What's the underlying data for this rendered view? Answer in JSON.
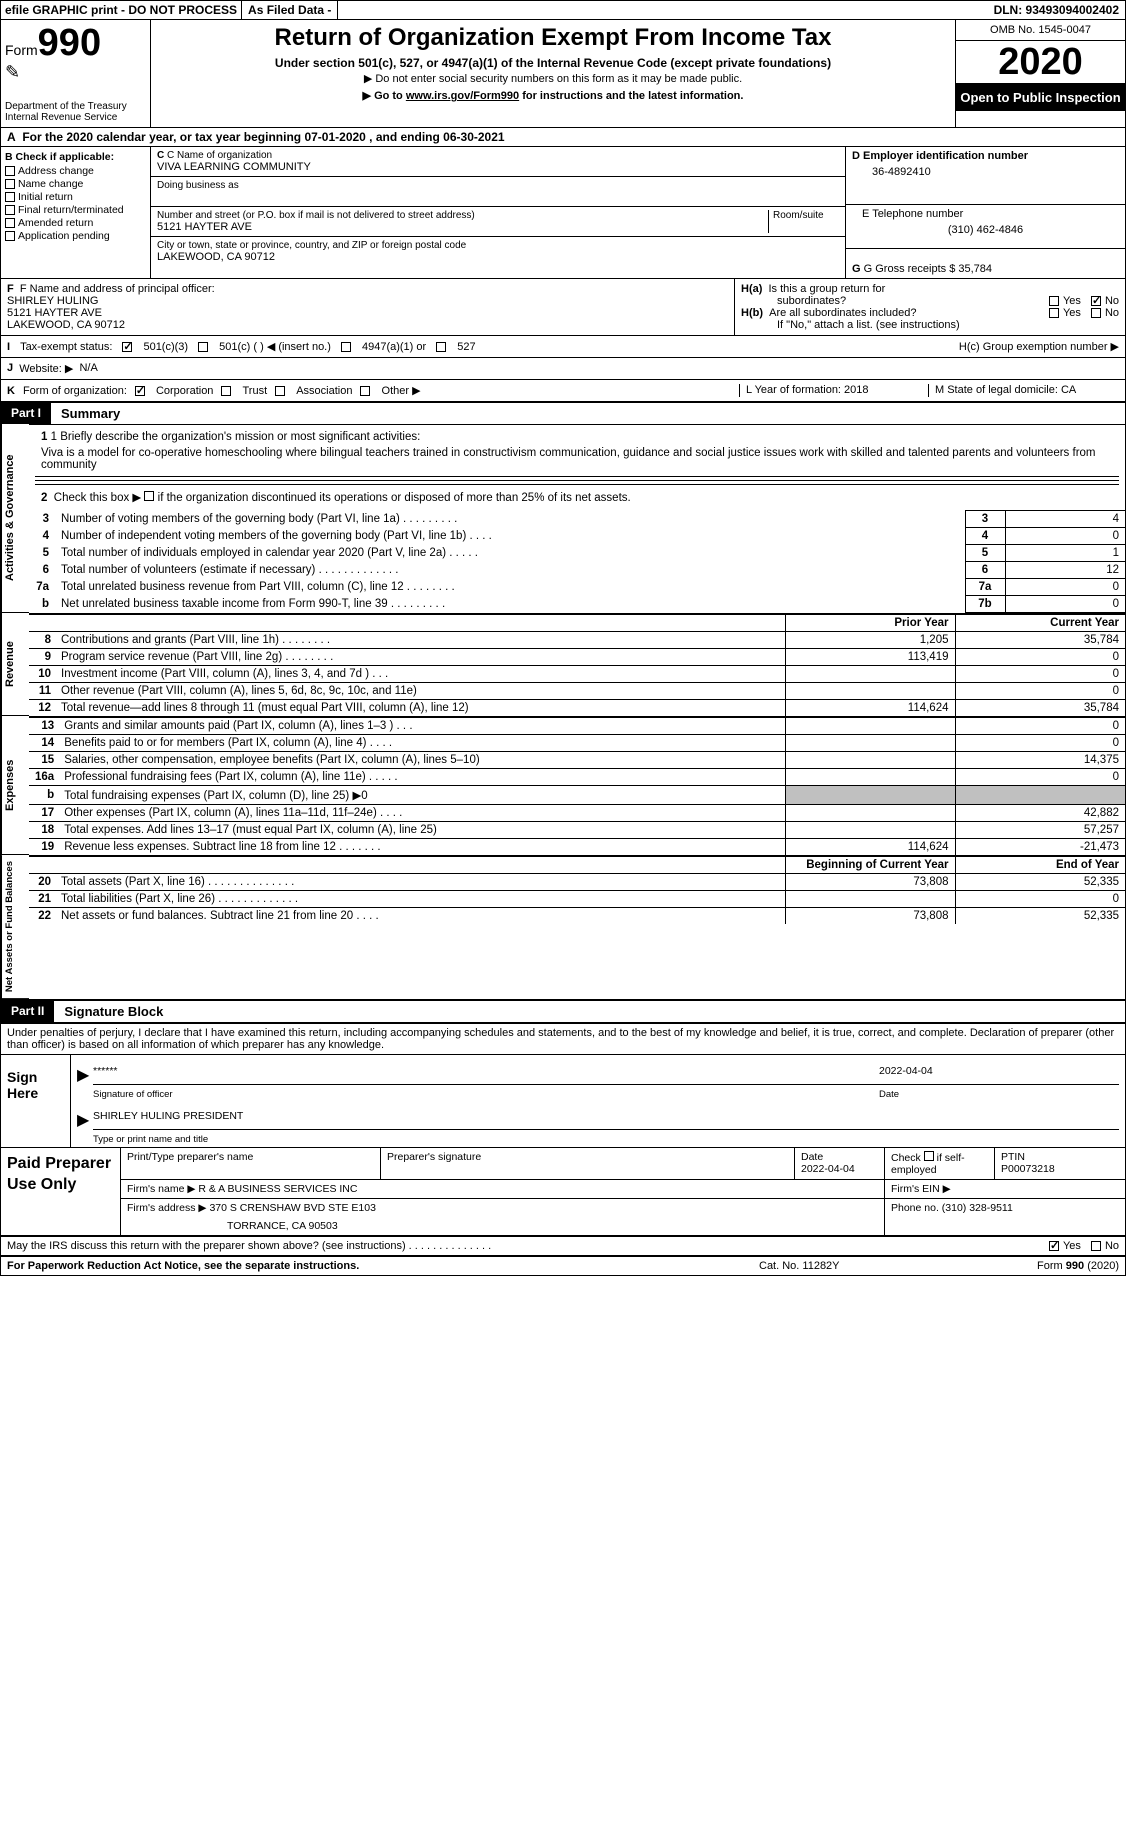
{
  "topbar": {
    "efile": "efile GRAPHIC print - DO NOT PROCESS",
    "asFiled": "As Filed Data -",
    "dln": "DLN: 93493094002402"
  },
  "header": {
    "formLabel": "Form",
    "formNumber": "990",
    "dept": "Department of the Treasury\nInternal Revenue Service",
    "title": "Return of Organization Exempt From Income Tax",
    "sub1": "Under section 501(c), 527, or 4947(a)(1) of the Internal Revenue Code (except private foundations)",
    "sub2": "▶ Do not enter social security numbers on this form as it may be made public.",
    "sub3_prefix": "▶ Go to ",
    "sub3_link": "www.irs.gov/Form990",
    "sub3_suffix": " for instructions and the latest information.",
    "omb": "OMB No. 1545-0047",
    "year": "2020",
    "inspection": "Open to Public Inspection"
  },
  "rowA": {
    "label": "A",
    "text": "For the 2020 calendar year, or tax year beginning 07-01-2020   , and ending 06-30-2021"
  },
  "sectionB": {
    "label": "B Check if applicable:",
    "items": [
      "Address change",
      "Name change",
      "Initial return",
      "Final return/terminated",
      "Amended return",
      "Application pending"
    ]
  },
  "sectionC": {
    "nameLabel": "C Name of organization",
    "name": "VIVA LEARNING COMMUNITY",
    "dbaLabel": "Doing business as",
    "streetLabel": "Number and street (or P.O. box if mail is not delivered to street address)",
    "roomLabel": "Room/suite",
    "street": "5121 HAYTER AVE",
    "cityLabel": "City or town, state or province, country, and ZIP or foreign postal code",
    "city": "LAKEWOOD, CA  90712"
  },
  "sectionD": {
    "label": "D Employer identification number",
    "ein": "36-4892410",
    "eLabel": "E Telephone number",
    "phone": "(310) 462-4846",
    "gLabel": "G Gross receipts $ 35,784"
  },
  "sectionF": {
    "label": "F  Name and address of principal officer:",
    "name": "SHIRLEY HULING",
    "street": "5121 HAYTER AVE",
    "city": "LAKEWOOD, CA  90712"
  },
  "sectionH": {
    "h_a": "H(a)  Is this a group return for subordinates?",
    "h_b": "H(b)  Are all subordinates included?",
    "h_note": "If \"No,\" attach a list. (see instructions)",
    "h_c": "H(c)  Group exemption number ▶",
    "yes": "Yes",
    "no": "No"
  },
  "sectionI": {
    "label": "I",
    "text": "Tax-exempt status:",
    "opt1": "501(c)(3)",
    "opt2": "501(c) (   ) ◀ (insert no.)",
    "opt3": "4947(a)(1) or",
    "opt4": "527"
  },
  "sectionJ": {
    "label": "J",
    "text": "Website: ▶",
    "value": "N/A"
  },
  "sectionK": {
    "label": "K",
    "text": "Form of organization:",
    "opts": [
      "Corporation",
      "Trust",
      "Association",
      "Other ▶"
    ],
    "lLabel": "L Year of formation: 2018",
    "mLabel": "M State of legal domicile: CA"
  },
  "partI": {
    "label": "Part I",
    "title": "Summary"
  },
  "mission": {
    "line1Label": "1 Briefly describe the organization's mission or most significant activities:",
    "text": "Viva is a model for co-operative homeschooling where bilingual teachers trained in constructivism communication, guidance and social justice issues work with skilled and talented parents and volunteers from community",
    "line2": "2  Check this box ▶        if the organization discontinued its operations or disposed of more than 25% of its net assets."
  },
  "govLines": [
    {
      "n": "3",
      "desc": "Number of voting members of the governing body (Part VI, line 1a)  .   .   .   .   .   .   .   .   .",
      "num": "3",
      "val": "4"
    },
    {
      "n": "4",
      "desc": "Number of independent voting members of the governing body (Part VI, line 1b)   .    .    .    .",
      "num": "4",
      "val": "0"
    },
    {
      "n": "5",
      "desc": "Total number of individuals employed in calendar year 2020 (Part V, line 2a)   .    .    .    .    .",
      "num": "5",
      "val": "1"
    },
    {
      "n": "6",
      "desc": "Total number of volunteers (estimate if necessary)   .   .   .   .   .   .   .   .   .   .   .   .   .",
      "num": "6",
      "val": "12"
    },
    {
      "n": "7a",
      "desc": "Total unrelated business revenue from Part VIII, column (C), line 12   .   .   .   .   .   .   .   .",
      "num": "7a",
      "val": "0"
    },
    {
      "n": "b",
      "desc": "Net unrelated business taxable income from Form 990-T, line 39   .   .   .   .   .   .   .   .   .",
      "num": "7b",
      "val": "0"
    }
  ],
  "finHeader": {
    "prior": "Prior Year",
    "curr": "Current Year"
  },
  "revenue": [
    {
      "n": "8",
      "desc": "Contributions and grants (Part VIII, line 1h)   .    .    .    .    .    .    .    .",
      "prior": "1,205",
      "curr": "35,784"
    },
    {
      "n": "9",
      "desc": "Program service revenue (Part VIII, line 2g)   .    .    .    .    .    .    .    .",
      "prior": "113,419",
      "curr": "0"
    },
    {
      "n": "10",
      "desc": "Investment income (Part VIII, column (A), lines 3, 4, and 7d )   .    .    .",
      "prior": "",
      "curr": "0"
    },
    {
      "n": "11",
      "desc": "Other revenue (Part VIII, column (A), lines 5, 6d, 8c, 9c, 10c, and 11e)",
      "prior": "",
      "curr": "0"
    },
    {
      "n": "12",
      "desc": "Total revenue—add lines 8 through 11 (must equal Part VIII, column (A), line 12)",
      "prior": "114,624",
      "curr": "35,784"
    }
  ],
  "expenses": [
    {
      "n": "13",
      "desc": "Grants and similar amounts paid (Part IX, column (A), lines 1–3 )   .    .    .",
      "prior": "",
      "curr": "0"
    },
    {
      "n": "14",
      "desc": "Benefits paid to or for members (Part IX, column (A), line 4)   .    .    .    .",
      "prior": "",
      "curr": "0"
    },
    {
      "n": "15",
      "desc": "Salaries, other compensation, employee benefits (Part IX, column (A), lines 5–10)",
      "prior": "",
      "curr": "14,375"
    },
    {
      "n": "16a",
      "desc": "Professional fundraising fees (Part IX, column (A), line 11e)   .    .    .    .    .",
      "prior": "",
      "curr": "0"
    },
    {
      "n": "b",
      "desc": "Total fundraising expenses (Part IX, column (D), line 25) ▶0",
      "prior": "GREY",
      "curr": "GREY"
    },
    {
      "n": "17",
      "desc": "Other expenses (Part IX, column (A), lines 11a–11d, 11f–24e)   .    .    .    .",
      "prior": "",
      "curr": "42,882"
    },
    {
      "n": "18",
      "desc": "Total expenses. Add lines 13–17 (must equal Part IX, column (A), line 25)",
      "prior": "",
      "curr": "57,257"
    },
    {
      "n": "19",
      "desc": "Revenue less expenses. Subtract line 18 from line 12   .    .    .    .    .    .    .",
      "prior": "114,624",
      "curr": "-21,473"
    }
  ],
  "netHeader": {
    "begin": "Beginning of Current Year",
    "end": "End of Year"
  },
  "netAssets": [
    {
      "n": "20",
      "desc": "Total assets (Part X, line 16)   .   .   .   .   .   .   .   .   .   .   .   .   .   .",
      "prior": "73,808",
      "curr": "52,335"
    },
    {
      "n": "21",
      "desc": "Total liabilities (Part X, line 26)   .   .   .   .   .   .   .   .   .   .   .   .   .",
      "prior": "",
      "curr": "0"
    },
    {
      "n": "22",
      "desc": "Net assets or fund balances. Subtract line 21 from line 20   .    .    .    .",
      "prior": "73,808",
      "curr": "52,335"
    }
  ],
  "vtabs": {
    "gov": "Activities & Governance",
    "rev": "Revenue",
    "exp": "Expenses",
    "net": "Net Assets or Fund Balances"
  },
  "partII": {
    "label": "Part II",
    "title": "Signature Block"
  },
  "sigIntro": "Under penalties of perjury, I declare that I have examined this return, including accompanying schedules and statements, and to the best of my knowledge and belief, it is true, correct, and complete. Declaration of preparer (other than officer) is based on all information of which preparer has any knowledge.",
  "sign": {
    "here": "Sign Here",
    "stars": "******",
    "sigOfficer": "Signature of officer",
    "date": "2022-04-04",
    "dateLabel": "Date",
    "nameTitle": "SHIRLEY HULING PRESIDENT",
    "nameTitleLabel": "Type or print name and title"
  },
  "prep": {
    "label": "Paid Preparer Use Only",
    "printLabel": "Print/Type preparer's name",
    "sigLabel": "Preparer's signature",
    "dateLabel": "Date",
    "date": "2022-04-04",
    "checkLabel": "Check        if self-employed",
    "ptinLabel": "PTIN",
    "ptin": "P00073218",
    "firmNameLabel": "Firm's name    ▶",
    "firmName": "R & A BUSINESS SERVICES INC",
    "firmEinLabel": "Firm's EIN ▶",
    "firmAddrLabel": "Firm's address ▶",
    "firmAddr1": "370 S CRENSHAW BVD STE E103",
    "firmAddr2": "TORRANCE, CA  90503",
    "phoneLabel": "Phone no. (310) 328-9511"
  },
  "footer": {
    "discuss": "May the IRS discuss this return with the preparer shown above? (see instructions)   .    .    .    .    .    .    .    .    .    .    .    .    .    .",
    "yes": "Yes",
    "no": "No",
    "paperwork": "For Paperwork Reduction Act Notice, see the separate instructions.",
    "cat": "Cat. No. 11282Y",
    "form": "Form 990 (2020)"
  }
}
